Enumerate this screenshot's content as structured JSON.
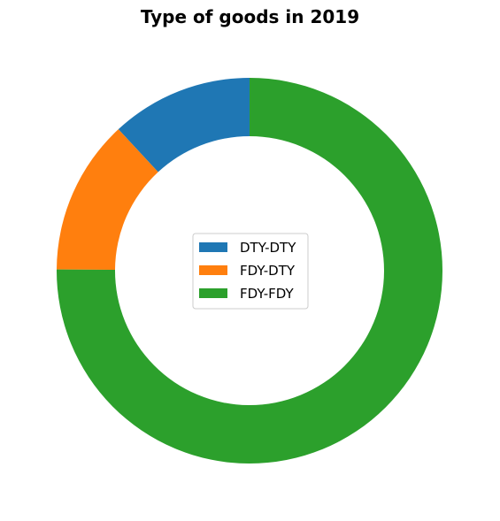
{
  "chart_data": {
    "type": "pie",
    "variant": "donut",
    "title": "Type of goods in 2019",
    "categories": [
      "DTY-DTY",
      "FDY-DTY",
      "FDY-FDY"
    ],
    "values": [
      11.9,
      13.0,
      75.1
    ],
    "colors": [
      "#1f77b4",
      "#ff7f0e",
      "#2ca02c"
    ],
    "start_angle_deg": 90,
    "direction": "counterclockwise",
    "legend": {
      "placement": "center",
      "entries": [
        "DTY-DTY",
        "FDY-DTY",
        "FDY-FDY"
      ]
    }
  }
}
